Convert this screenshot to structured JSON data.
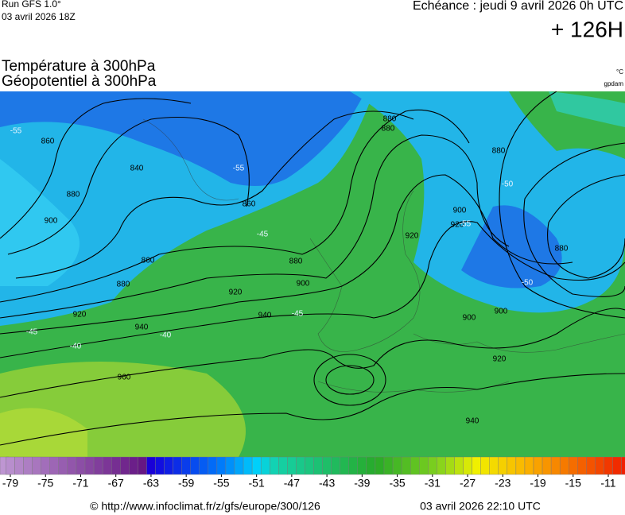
{
  "header": {
    "run": "Run GFS 1.0°",
    "run_date": "03 avril 2026 18Z",
    "valid": "Echéance : jeudi 9 avril 2026 0h UTC",
    "lead": "+ 126H",
    "title1": "Température à 300hPa",
    "title2": "Géopotentiel à 300hPa",
    "unit1": "°C",
    "unit2": "gpdam"
  },
  "map": {
    "contour_labels": [
      "860",
      "840",
      "880",
      "900",
      "860",
      "880",
      "920",
      "940",
      "960",
      "880",
      "900",
      "920",
      "940",
      "860",
      "880",
      "900",
      "920",
      "880",
      "900",
      "880",
      "900",
      "920",
      "880",
      "920",
      "940"
    ],
    "temperature_labels": [
      "-55",
      "-55",
      "-45",
      "-45",
      "-40",
      "-50",
      "-45",
      "-40",
      "-55",
      "-50"
    ]
  },
  "colorbar": {
    "labels": [
      -79,
      -75,
      -71,
      -67,
      -63,
      -59,
      -55,
      -51,
      -47,
      -43,
      -39,
      -35,
      -31,
      -27,
      -23,
      -19,
      -15,
      -11
    ]
  },
  "footer": {
    "source": "© http://www.infoclimat.fr/z/gfs/europe/300/126",
    "issued": "03 avril 2026 22:10 UTC"
  }
}
